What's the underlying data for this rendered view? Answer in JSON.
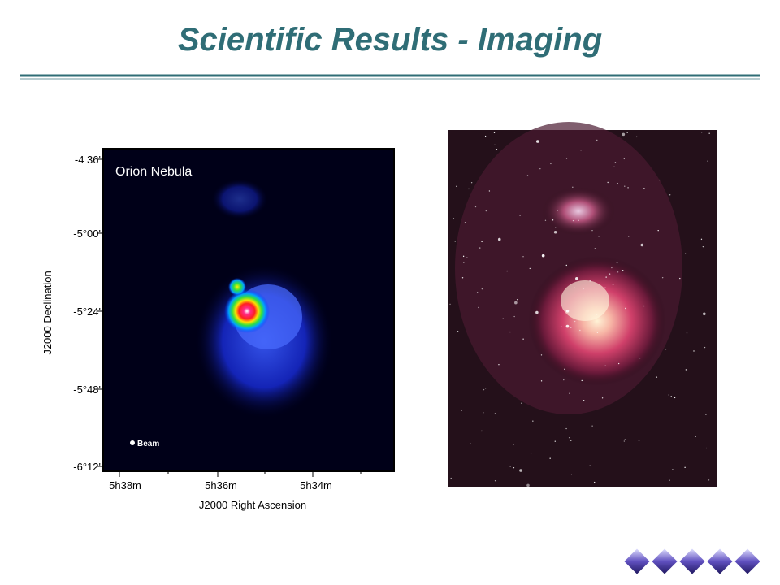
{
  "header": {
    "title": "Scientific Results - Imaging"
  },
  "radio_image": {
    "label": "Orion Nebula",
    "beam_label": "Beam",
    "y_axis_label": "J2000 Declination",
    "x_axis_label": "J2000 Right Ascension",
    "y_tick_labels": [
      "-4 36'",
      "-5°00'",
      "-5°24'",
      "-5°48'",
      "-6°12'"
    ],
    "x_tick_labels": [
      "5h38m",
      "5h36m",
      "5h34m"
    ]
  }
}
